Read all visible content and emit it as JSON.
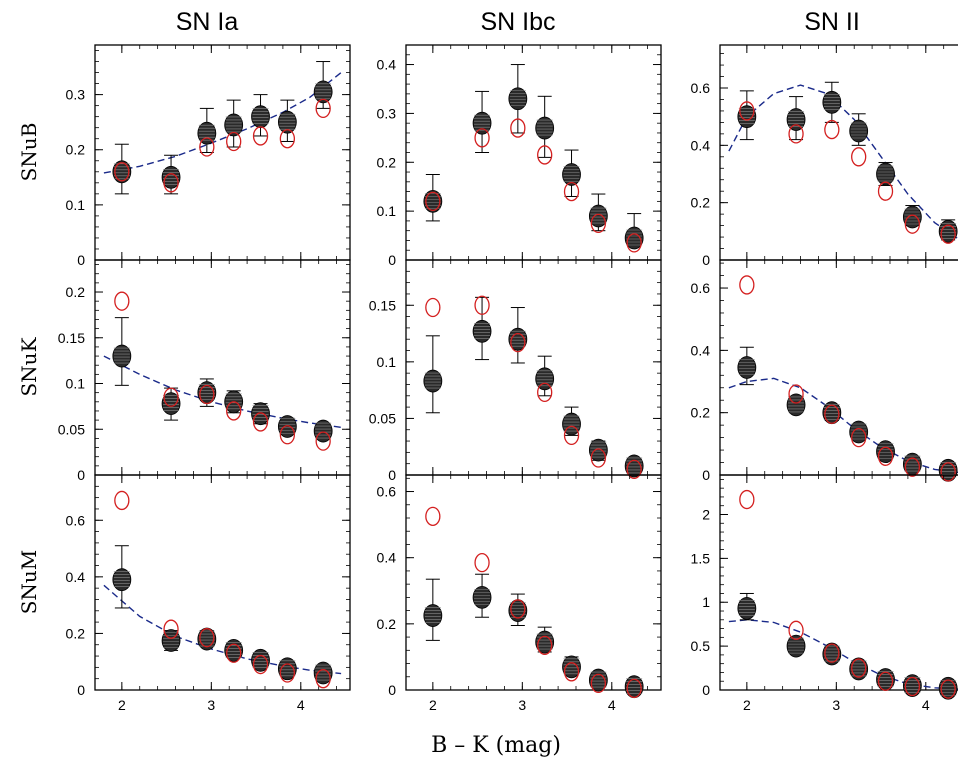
{
  "col_titles": [
    "SN Ia",
    "SN Ibc",
    "SN II"
  ],
  "row_labels": [
    "SNuB",
    "SNuK",
    "SNuM"
  ],
  "xlabel": "B – K (mag)",
  "colors": {
    "model_circle": "#d42020",
    "fit_curve": "#1a2a8a",
    "points": "#2a2a2a"
  },
  "chart_data": [
    {
      "type": "scatter",
      "row": "SNuB",
      "col": "SN Ia",
      "xlim": [
        1.7,
        4.55
      ],
      "ylim": [
        0,
        0.39
      ],
      "xticks": [
        2,
        3,
        4
      ],
      "yticks": [
        0,
        0.1,
        0.2,
        0.3
      ],
      "ytick_labels": [
        "0",
        "0.1",
        "0.2",
        "0.3"
      ],
      "x": [
        2.0,
        2.55,
        2.95,
        3.25,
        3.55,
        3.85,
        4.25
      ],
      "points": [
        0.16,
        0.15,
        0.23,
        0.245,
        0.26,
        0.25,
        0.305
      ],
      "err_low": [
        0.12,
        0.12,
        0.195,
        0.205,
        0.225,
        0.215,
        0.275
      ],
      "err_high": [
        0.21,
        0.19,
        0.275,
        0.29,
        0.3,
        0.29,
        0.36
      ],
      "model": [
        0.16,
        0.14,
        0.205,
        0.215,
        0.225,
        0.22,
        0.275
      ],
      "fit": {
        "x": [
          1.8,
          2.2,
          2.6,
          3.0,
          3.4,
          3.8,
          4.1,
          4.45
        ],
        "y": [
          0.158,
          0.17,
          0.188,
          0.212,
          0.238,
          0.268,
          0.295,
          0.34
        ]
      }
    },
    {
      "type": "scatter",
      "row": "SNuB",
      "col": "SN Ibc",
      "xlim": [
        1.7,
        4.55
      ],
      "ylim": [
        0,
        0.44
      ],
      "xticks": [
        2,
        3,
        4
      ],
      "yticks": [
        0,
        0.1,
        0.2,
        0.3,
        0.4
      ],
      "ytick_labels": [
        "0",
        "0.1",
        "0.2",
        "0.3",
        "0.4"
      ],
      "x": [
        2.0,
        2.55,
        2.95,
        3.25,
        3.55,
        3.85,
        4.25
      ],
      "points": [
        0.12,
        0.28,
        0.33,
        0.27,
        0.175,
        0.09,
        0.045
      ],
      "err_low": [
        0.08,
        0.22,
        0.26,
        0.21,
        0.13,
        0.06,
        0.03
      ],
      "err_high": [
        0.175,
        0.345,
        0.4,
        0.335,
        0.225,
        0.135,
        0.095
      ],
      "model": [
        0.12,
        0.25,
        0.27,
        0.215,
        0.14,
        0.075,
        0.035
      ],
      "fit": null
    },
    {
      "type": "scatter",
      "row": "SNuB",
      "col": "SN II",
      "xlim": [
        1.7,
        4.55
      ],
      "ylim": [
        0,
        0.75
      ],
      "xticks": [
        2,
        3,
        4
      ],
      "yticks": [
        0,
        0.2,
        0.4,
        0.6
      ],
      "ytick_labels": [
        "0",
        "0.2",
        "0.4",
        "0.6"
      ],
      "x": [
        2.0,
        2.55,
        2.95,
        3.25,
        3.55,
        3.85,
        4.25
      ],
      "points": [
        0.5,
        0.49,
        0.55,
        0.45,
        0.3,
        0.15,
        0.1
      ],
      "err_low": [
        0.42,
        0.42,
        0.48,
        0.4,
        0.26,
        0.12,
        0.07
      ],
      "err_high": [
        0.59,
        0.57,
        0.62,
        0.51,
        0.34,
        0.19,
        0.14
      ],
      "model": [
        0.52,
        0.44,
        0.455,
        0.36,
        0.24,
        0.125,
        0.09
      ],
      "fit": {
        "x": [
          1.8,
          2.0,
          2.3,
          2.6,
          2.9,
          3.2,
          3.5,
          3.8,
          4.1,
          4.45
        ],
        "y": [
          0.38,
          0.5,
          0.58,
          0.61,
          0.58,
          0.49,
          0.36,
          0.23,
          0.13,
          0.055
        ]
      }
    },
    {
      "type": "scatter",
      "row": "SNuK",
      "col": "SN Ia",
      "xlim": [
        1.7,
        4.55
      ],
      "ylim": [
        0,
        0.235
      ],
      "xticks": [
        2,
        3,
        4
      ],
      "yticks": [
        0,
        0.05,
        0.1,
        0.15,
        0.2
      ],
      "ytick_labels": [
        "0",
        "0.05",
        "0.1",
        "0.15",
        "0.2"
      ],
      "x": [
        2.0,
        2.55,
        2.95,
        3.25,
        3.55,
        3.85,
        4.25
      ],
      "points": [
        0.13,
        0.078,
        0.09,
        0.08,
        0.067,
        0.053,
        0.048
      ],
      "err_low": [
        0.098,
        0.06,
        0.075,
        0.068,
        0.056,
        0.045,
        0.04
      ],
      "err_high": [
        0.172,
        0.095,
        0.105,
        0.092,
        0.078,
        0.062,
        0.056
      ],
      "model": [
        0.19,
        0.085,
        0.088,
        0.07,
        0.058,
        0.044,
        0.037
      ],
      "fit": {
        "x": [
          1.8,
          2.2,
          2.6,
          3.0,
          3.4,
          3.8,
          4.1,
          4.45
        ],
        "y": [
          0.13,
          0.11,
          0.093,
          0.08,
          0.07,
          0.062,
          0.057,
          0.052
        ]
      }
    },
    {
      "type": "scatter",
      "row": "SNuK",
      "col": "SN Ibc",
      "xlim": [
        1.7,
        4.55
      ],
      "ylim": [
        0,
        0.19
      ],
      "xticks": [
        2,
        3,
        4
      ],
      "yticks": [
        0,
        0.05,
        0.1,
        0.15
      ],
      "ytick_labels": [
        "0",
        "0.05",
        "0.1",
        "0.15"
      ],
      "x": [
        2.0,
        2.55,
        2.95,
        3.25,
        3.55,
        3.85,
        4.25
      ],
      "points": [
        0.083,
        0.127,
        0.12,
        0.085,
        0.045,
        0.022,
        0.008
      ],
      "err_low": [
        0.055,
        0.102,
        0.099,
        0.07,
        0.035,
        0.013,
        0.002
      ],
      "err_high": [
        0.123,
        0.157,
        0.148,
        0.105,
        0.06,
        0.03,
        0.015
      ],
      "model": [
        0.148,
        0.15,
        0.117,
        0.073,
        0.035,
        0.015,
        0.005
      ],
      "fit": null
    },
    {
      "type": "scatter",
      "row": "SNuK",
      "col": "SN II",
      "xlim": [
        1.7,
        4.55
      ],
      "ylim": [
        0,
        0.69
      ],
      "xticks": [
        2,
        3,
        4
      ],
      "yticks": [
        0,
        0.2,
        0.4,
        0.6
      ],
      "ytick_labels": [
        "0",
        "0.2",
        "0.4",
        "0.6"
      ],
      "x": [
        2.0,
        2.55,
        2.95,
        3.25,
        3.55,
        3.85,
        4.25
      ],
      "points": [
        0.345,
        0.225,
        0.2,
        0.138,
        0.075,
        0.035,
        0.015
      ],
      "err_low": [
        0.29,
        0.2,
        0.175,
        0.118,
        0.06,
        0.022,
        0.005
      ],
      "err_high": [
        0.41,
        0.25,
        0.225,
        0.158,
        0.09,
        0.05,
        0.025
      ],
      "model": [
        0.61,
        0.26,
        0.195,
        0.12,
        0.06,
        0.025,
        0.01
      ],
      "fit": {
        "x": [
          1.8,
          2.0,
          2.3,
          2.6,
          2.9,
          3.2,
          3.5,
          3.8,
          4.1,
          4.45
        ],
        "y": [
          0.28,
          0.3,
          0.31,
          0.28,
          0.22,
          0.15,
          0.09,
          0.045,
          0.018,
          0.005
        ]
      }
    },
    {
      "type": "scatter",
      "row": "SNuM",
      "col": "SN Ia",
      "xlim": [
        1.7,
        4.55
      ],
      "ylim": [
        0,
        0.76
      ],
      "xticks": [
        2,
        3,
        4
      ],
      "yticks": [
        0,
        0.2,
        0.4,
        0.6
      ],
      "ytick_labels": [
        "0",
        "0.2",
        "0.4",
        "0.6"
      ],
      "x": [
        2.0,
        2.55,
        2.95,
        3.25,
        3.55,
        3.85,
        4.25
      ],
      "points": [
        0.39,
        0.175,
        0.18,
        0.14,
        0.105,
        0.075,
        0.06
      ],
      "err_low": [
        0.29,
        0.14,
        0.155,
        0.12,
        0.085,
        0.055,
        0.045
      ],
      "err_high": [
        0.51,
        0.21,
        0.21,
        0.165,
        0.125,
        0.095,
        0.08
      ],
      "model": [
        0.67,
        0.215,
        0.185,
        0.13,
        0.09,
        0.06,
        0.04
      ],
      "fit": {
        "x": [
          1.8,
          2.2,
          2.6,
          3.0,
          3.4,
          3.8,
          4.1,
          4.45
        ],
        "y": [
          0.37,
          0.26,
          0.19,
          0.145,
          0.11,
          0.085,
          0.07,
          0.058
        ]
      }
    },
    {
      "type": "scatter",
      "row": "SNuM",
      "col": "SN Ibc",
      "xlim": [
        1.7,
        4.55
      ],
      "ylim": [
        0,
        0.65
      ],
      "xticks": [
        2,
        3,
        4
      ],
      "yticks": [
        0,
        0.2,
        0.4,
        0.6
      ],
      "ytick_labels": [
        "0",
        "0.2",
        "0.4",
        "0.6"
      ],
      "x": [
        2.0,
        2.55,
        2.95,
        3.25,
        3.55,
        3.85,
        4.25
      ],
      "points": [
        0.225,
        0.28,
        0.24,
        0.145,
        0.07,
        0.03,
        0.01
      ],
      "err_low": [
        0.15,
        0.22,
        0.195,
        0.115,
        0.05,
        0.015,
        0.0
      ],
      "err_high": [
        0.335,
        0.35,
        0.29,
        0.19,
        0.1,
        0.05,
        0.025
      ],
      "model": [
        0.525,
        0.385,
        0.245,
        0.135,
        0.055,
        0.02,
        0.005
      ],
      "fit": null
    },
    {
      "type": "scatter",
      "row": "SNuM",
      "col": "SN II",
      "xlim": [
        1.7,
        4.55
      ],
      "ylim": [
        0,
        2.45
      ],
      "xticks": [
        2,
        3,
        4
      ],
      "yticks": [
        0,
        0.5,
        1,
        1.5,
        2
      ],
      "ytick_labels": [
        "0",
        "0.5",
        "1",
        "1.5",
        "2"
      ],
      "x": [
        2.0,
        2.55,
        2.95,
        3.25,
        3.55,
        3.85,
        4.25
      ],
      "points": [
        0.93,
        0.5,
        0.41,
        0.24,
        0.12,
        0.05,
        0.02
      ],
      "err_low": [
        0.8,
        0.42,
        0.34,
        0.19,
        0.07,
        0.01,
        0.0
      ],
      "err_high": [
        1.1,
        0.59,
        0.48,
        0.3,
        0.17,
        0.09,
        0.05
      ],
      "model": [
        2.17,
        0.68,
        0.42,
        0.25,
        0.1,
        0.04,
        0.01
      ],
      "fit": {
        "x": [
          1.8,
          2.0,
          2.3,
          2.6,
          2.9,
          3.2,
          3.5,
          3.8,
          4.1,
          4.45
        ],
        "y": [
          0.78,
          0.8,
          0.77,
          0.66,
          0.5,
          0.32,
          0.17,
          0.07,
          0.025,
          0.005
        ]
      }
    }
  ]
}
